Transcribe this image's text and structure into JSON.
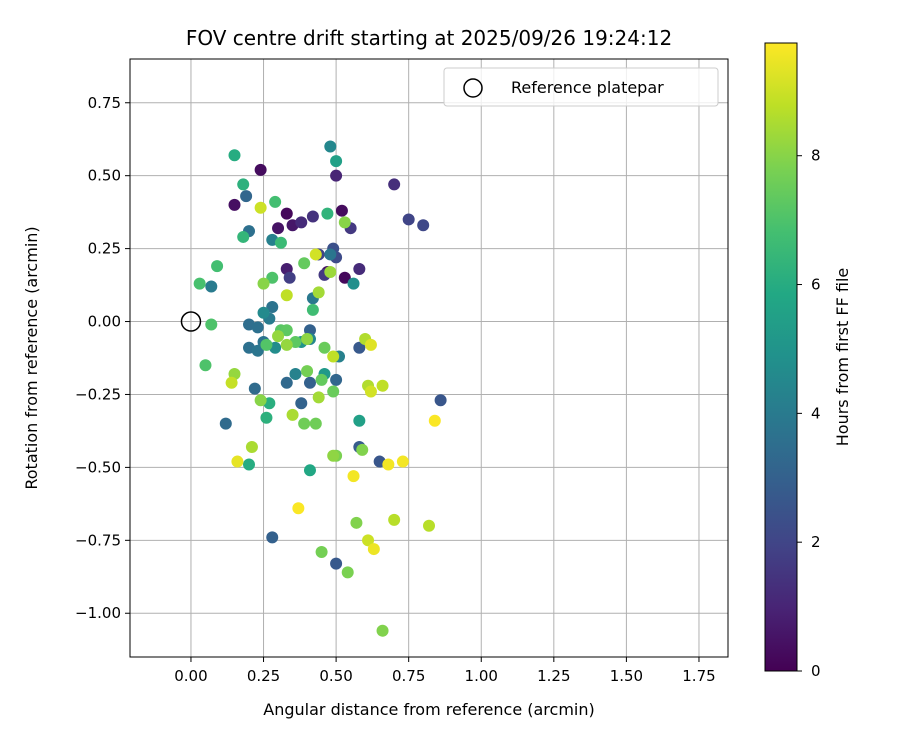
{
  "chart_data": {
    "type": "scatter",
    "title": "FOV centre drift starting at 2025/09/26 19:24:12",
    "xlabel": "Angular distance from reference (arcmin)",
    "ylabel": "Rotation from reference (arcmin)",
    "xlim": [
      -0.21,
      1.85
    ],
    "ylim": [
      -1.15,
      0.9
    ],
    "xticks": [
      0.0,
      0.25,
      0.5,
      0.75,
      1.0,
      1.25,
      1.5,
      1.75
    ],
    "xtick_labels": [
      "0.00",
      "0.25",
      "0.50",
      "0.75",
      "1.00",
      "1.25",
      "1.50",
      "1.75"
    ],
    "yticks": [
      0.75,
      0.5,
      0.25,
      0.0,
      -0.25,
      -0.5,
      -0.75,
      -1.0
    ],
    "ytick_labels": [
      "0.75",
      "0.50",
      "0.25",
      "0.00",
      "−0.25",
      "−0.50",
      "−0.75",
      "−1.00"
    ],
    "grid": true,
    "legend": {
      "label": "Reference platepar",
      "placement": "top-right"
    },
    "reference_point": {
      "x": 0.0,
      "y": 0.0
    },
    "colorbar": {
      "label": "Hours from first FF file",
      "min": 0,
      "max": 9.75,
      "ticks": [
        0,
        2,
        4,
        6,
        8
      ],
      "tick_labels": [
        "0",
        "2",
        "4",
        "6",
        "8"
      ],
      "colormap": "viridis",
      "colors": [
        "#440154",
        "#482475",
        "#414487",
        "#355f8d",
        "#2a788e",
        "#21918c",
        "#22a884",
        "#44bf70",
        "#7ad151",
        "#bddf26",
        "#fde725"
      ]
    },
    "points": [
      {
        "x": 0.24,
        "y": 0.52,
        "h": 0.3
      },
      {
        "x": 0.15,
        "y": 0.4,
        "h": 0.4
      },
      {
        "x": 0.33,
        "y": 0.37,
        "h": 0.2
      },
      {
        "x": 0.3,
        "y": 0.32,
        "h": 0.5
      },
      {
        "x": 0.35,
        "y": 0.33,
        "h": 0.6
      },
      {
        "x": 0.52,
        "y": 0.38,
        "h": 0.3
      },
      {
        "x": 0.53,
        "y": 0.15,
        "h": 0.2
      },
      {
        "x": 0.47,
        "y": 0.17,
        "h": 0.5
      },
      {
        "x": 0.33,
        "y": 0.18,
        "h": 0.8
      },
      {
        "x": 0.5,
        "y": 0.5,
        "h": 1.0
      },
      {
        "x": 0.38,
        "y": 0.34,
        "h": 1.2
      },
      {
        "x": 0.42,
        "y": 0.36,
        "h": 1.4
      },
      {
        "x": 0.7,
        "y": 0.47,
        "h": 1.3
      },
      {
        "x": 0.58,
        "y": 0.18,
        "h": 1.2
      },
      {
        "x": 0.55,
        "y": 0.32,
        "h": 1.6
      },
      {
        "x": 0.46,
        "y": 0.16,
        "h": 1.6
      },
      {
        "x": 0.34,
        "y": 0.15,
        "h": 1.8
      },
      {
        "x": 0.75,
        "y": 0.35,
        "h": 2.0
      },
      {
        "x": 0.8,
        "y": 0.33,
        "h": 2.1
      },
      {
        "x": 0.5,
        "y": 0.22,
        "h": 2.2
      },
      {
        "x": 0.44,
        "y": 0.23,
        "h": 2.0
      },
      {
        "x": 0.49,
        "y": 0.25,
        "h": 2.4
      },
      {
        "x": 0.86,
        "y": -0.27,
        "h": 2.6
      },
      {
        "x": 0.65,
        "y": -0.48,
        "h": 2.6
      },
      {
        "x": 0.5,
        "y": -0.83,
        "h": 2.7
      },
      {
        "x": 0.28,
        "y": -0.74,
        "h": 3.0
      },
      {
        "x": 0.58,
        "y": -0.43,
        "h": 2.8
      },
      {
        "x": 0.58,
        "y": -0.09,
        "h": 2.7
      },
      {
        "x": 0.41,
        "y": -0.03,
        "h": 3.0
      },
      {
        "x": 0.38,
        "y": -0.28,
        "h": 3.1
      },
      {
        "x": 0.41,
        "y": -0.21,
        "h": 3.0
      },
      {
        "x": 0.5,
        "y": -0.2,
        "h": 3.2
      },
      {
        "x": 0.33,
        "y": -0.21,
        "h": 3.3
      },
      {
        "x": 0.22,
        "y": -0.23,
        "h": 3.4
      },
      {
        "x": 0.12,
        "y": -0.35,
        "h": 3.4
      },
      {
        "x": 0.2,
        "y": 0.31,
        "h": 3.6
      },
      {
        "x": 0.19,
        "y": 0.43,
        "h": 3.2
      },
      {
        "x": 0.2,
        "y": -0.01,
        "h": 3.5
      },
      {
        "x": 0.23,
        "y": -0.02,
        "h": 3.6
      },
      {
        "x": 0.25,
        "y": -0.07,
        "h": 3.7
      },
      {
        "x": 0.2,
        "y": -0.09,
        "h": 3.6
      },
      {
        "x": 0.23,
        "y": -0.1,
        "h": 3.8
      },
      {
        "x": 0.28,
        "y": 0.05,
        "h": 3.7
      },
      {
        "x": 0.27,
        "y": 0.01,
        "h": 4.0
      },
      {
        "x": 0.42,
        "y": 0.08,
        "h": 3.9
      },
      {
        "x": 0.48,
        "y": 0.23,
        "h": 3.8
      },
      {
        "x": 0.07,
        "y": 0.12,
        "h": 4.0
      },
      {
        "x": 0.28,
        "y": 0.28,
        "h": 4.2
      },
      {
        "x": 0.36,
        "y": -0.18,
        "h": 4.3
      },
      {
        "x": 0.51,
        "y": -0.12,
        "h": 4.2
      },
      {
        "x": 0.48,
        "y": 0.6,
        "h": 4.5
      },
      {
        "x": 0.25,
        "y": 0.03,
        "h": 4.6
      },
      {
        "x": 0.29,
        "y": -0.09,
        "h": 4.7
      },
      {
        "x": 0.41,
        "y": -0.06,
        "h": 4.5
      },
      {
        "x": 0.56,
        "y": 0.13,
        "h": 4.8
      },
      {
        "x": 0.38,
        "y": -0.07,
        "h": 5.0
      },
      {
        "x": 0.58,
        "y": -0.34,
        "h": 5.5
      },
      {
        "x": 0.46,
        "y": -0.18,
        "h": 5.2
      },
      {
        "x": 0.5,
        "y": 0.55,
        "h": 5.5
      },
      {
        "x": 0.15,
        "y": 0.57,
        "h": 6.0
      },
      {
        "x": 0.18,
        "y": 0.47,
        "h": 6.2
      },
      {
        "x": 0.41,
        "y": -0.51,
        "h": 5.8
      },
      {
        "x": 0.2,
        "y": -0.49,
        "h": 6.0
      },
      {
        "x": 0.27,
        "y": -0.28,
        "h": 6.1
      },
      {
        "x": 0.26,
        "y": -0.33,
        "h": 6.2
      },
      {
        "x": 0.47,
        "y": 0.37,
        "h": 6.3
      },
      {
        "x": 0.18,
        "y": 0.29,
        "h": 6.4
      },
      {
        "x": 0.31,
        "y": 0.27,
        "h": 6.6
      },
      {
        "x": 0.29,
        "y": 0.41,
        "h": 6.8
      },
      {
        "x": 0.09,
        "y": 0.19,
        "h": 6.8
      },
      {
        "x": 0.03,
        "y": 0.13,
        "h": 6.9
      },
      {
        "x": 0.07,
        "y": -0.01,
        "h": 7.0
      },
      {
        "x": 0.05,
        "y": -0.15,
        "h": 7.0
      },
      {
        "x": 0.42,
        "y": 0.04,
        "h": 6.7
      },
      {
        "x": 0.28,
        "y": 0.15,
        "h": 7.0
      },
      {
        "x": 0.26,
        "y": -0.08,
        "h": 7.1
      },
      {
        "x": 0.31,
        "y": -0.03,
        "h": 7.2
      },
      {
        "x": 0.33,
        "y": -0.03,
        "h": 7.3
      },
      {
        "x": 0.36,
        "y": -0.07,
        "h": 7.3
      },
      {
        "x": 0.39,
        "y": 0.2,
        "h": 7.4
      },
      {
        "x": 0.45,
        "y": -0.2,
        "h": 7.4
      },
      {
        "x": 0.49,
        "y": -0.24,
        "h": 7.5
      },
      {
        "x": 0.46,
        "y": -0.09,
        "h": 7.5
      },
      {
        "x": 0.39,
        "y": -0.35,
        "h": 7.6
      },
      {
        "x": 0.43,
        "y": -0.35,
        "h": 7.6
      },
      {
        "x": 0.4,
        "y": -0.17,
        "h": 7.7
      },
      {
        "x": 0.45,
        "y": -0.79,
        "h": 7.7
      },
      {
        "x": 0.54,
        "y": -0.86,
        "h": 7.8
      },
      {
        "x": 0.5,
        "y": -0.46,
        "h": 7.8
      },
      {
        "x": 0.57,
        "y": -0.69,
        "h": 7.9
      },
      {
        "x": 0.59,
        "y": -0.44,
        "h": 7.9
      },
      {
        "x": 0.66,
        "y": -1.06,
        "h": 7.9
      },
      {
        "x": 0.53,
        "y": 0.34,
        "h": 8.0
      },
      {
        "x": 0.25,
        "y": 0.13,
        "h": 8.0
      },
      {
        "x": 0.24,
        "y": -0.27,
        "h": 8.0
      },
      {
        "x": 0.4,
        "y": -0.06,
        "h": 8.1
      },
      {
        "x": 0.49,
        "y": -0.46,
        "h": 8.1
      },
      {
        "x": 0.15,
        "y": -0.18,
        "h": 8.2
      },
      {
        "x": 0.3,
        "y": -0.05,
        "h": 8.2
      },
      {
        "x": 0.33,
        "y": -0.08,
        "h": 8.2
      },
      {
        "x": 0.48,
        "y": 0.17,
        "h": 8.3
      },
      {
        "x": 0.44,
        "y": 0.1,
        "h": 8.4
      },
      {
        "x": 0.44,
        "y": -0.26,
        "h": 8.4
      },
      {
        "x": 0.35,
        "y": -0.32,
        "h": 8.5
      },
      {
        "x": 0.21,
        "y": -0.43,
        "h": 8.5
      },
      {
        "x": 0.6,
        "y": -0.06,
        "h": 8.6
      },
      {
        "x": 0.61,
        "y": -0.22,
        "h": 8.6
      },
      {
        "x": 0.7,
        "y": -0.68,
        "h": 8.7
      },
      {
        "x": 0.82,
        "y": -0.7,
        "h": 8.7
      },
      {
        "x": 0.66,
        "y": -0.22,
        "h": 8.8
      },
      {
        "x": 0.49,
        "y": -0.12,
        "h": 8.8
      },
      {
        "x": 0.33,
        "y": 0.09,
        "h": 8.8
      },
      {
        "x": 0.14,
        "y": -0.21,
        "h": 8.9
      },
      {
        "x": 0.61,
        "y": -0.75,
        "h": 9.0
      },
      {
        "x": 0.24,
        "y": 0.39,
        "h": 9.0
      },
      {
        "x": 0.43,
        "y": 0.23,
        "h": 9.1
      },
      {
        "x": 0.62,
        "y": -0.24,
        "h": 9.1
      },
      {
        "x": 0.62,
        "y": -0.08,
        "h": 9.3
      },
      {
        "x": 0.16,
        "y": -0.48,
        "h": 9.4
      },
      {
        "x": 0.63,
        "y": -0.78,
        "h": 9.5
      },
      {
        "x": 0.68,
        "y": -0.49,
        "h": 9.6
      },
      {
        "x": 0.73,
        "y": -0.48,
        "h": 9.6
      },
      {
        "x": 0.56,
        "y": -0.53,
        "h": 9.6
      },
      {
        "x": 0.37,
        "y": -0.64,
        "h": 9.7
      },
      {
        "x": 0.84,
        "y": -0.34,
        "h": 9.7
      }
    ]
  }
}
